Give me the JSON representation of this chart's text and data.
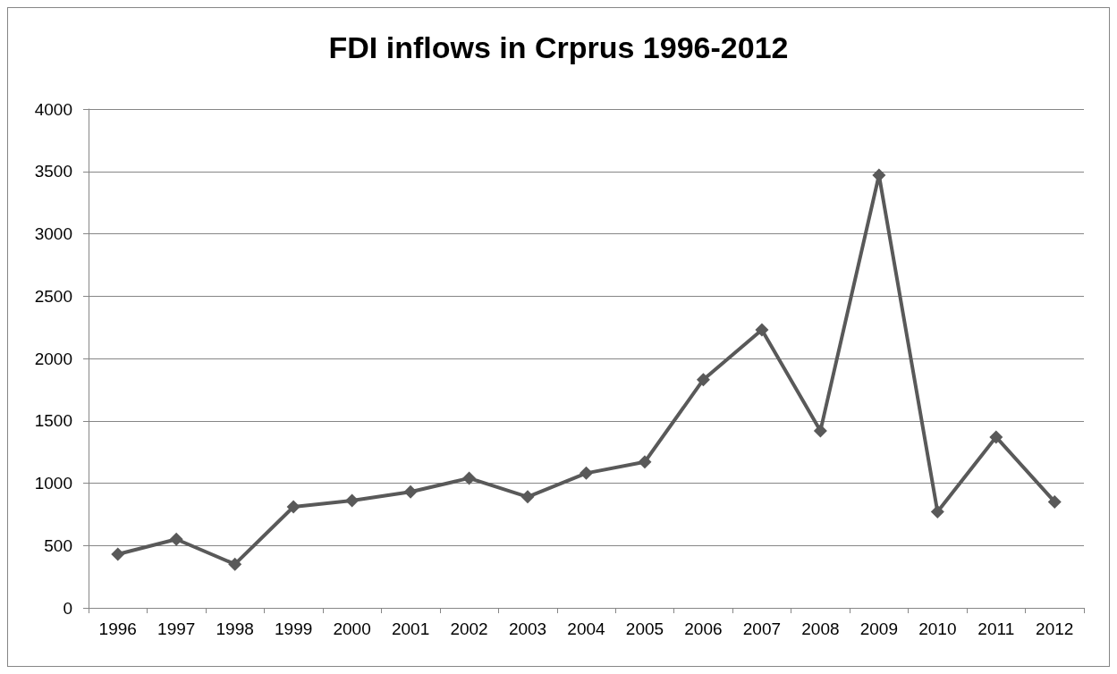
{
  "chart_data": {
    "type": "line",
    "title": "FDI inflows in Crprus 1996-2012",
    "categories": [
      "1996",
      "1997",
      "1998",
      "1999",
      "2000",
      "2001",
      "2002",
      "2003",
      "2004",
      "2005",
      "2006",
      "2007",
      "2008",
      "2009",
      "2010",
      "2011",
      "2012"
    ],
    "series": [
      {
        "color": "#595959",
        "values": [
          430,
          550,
          350,
          810,
          860,
          930,
          1040,
          890,
          1080,
          1170,
          1830,
          2230,
          1420,
          3470,
          770,
          1370,
          850
        ]
      }
    ],
    "ylim": [
      0,
      4000
    ],
    "yticks": [
      0,
      500,
      1000,
      1500,
      2000,
      2500,
      3000,
      3500,
      4000
    ],
    "grid": "y",
    "marker": "diamond",
    "line_style": "solid"
  }
}
